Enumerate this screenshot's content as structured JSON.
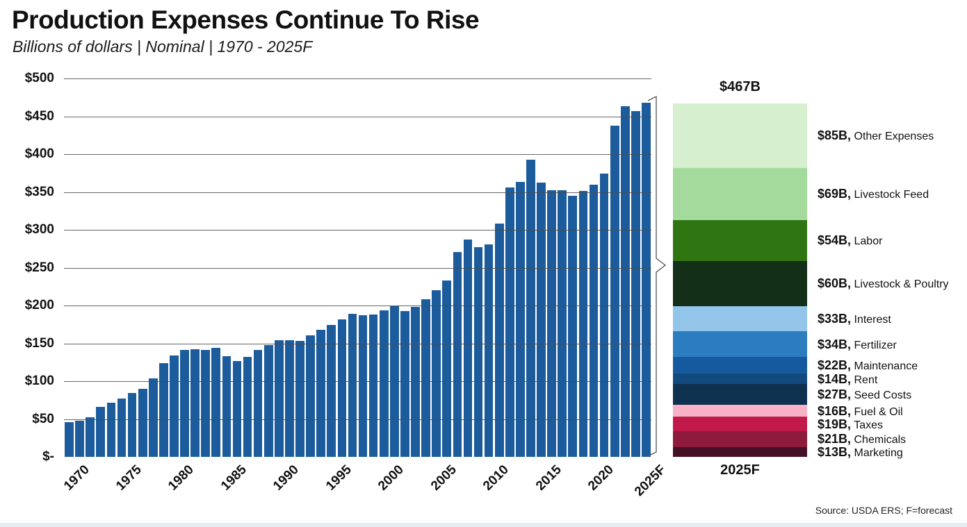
{
  "header": {
    "title": "Production Expenses Continue To Rise",
    "subtitle": "Billions of dollars | Nominal | 1970 - 2025F"
  },
  "footer": {
    "source": "Source: USDA ERS; F=forecast"
  },
  "chart_data": [
    {
      "type": "bar",
      "title": "Production Expenses Continue To Rise",
      "subtitle": "Billions of dollars | Nominal | 1970 - 2025F",
      "ylabel": "Billions of dollars",
      "ylim": [
        0,
        500
      ],
      "ytick_interval": 50,
      "grid": true,
      "bar_color": "#1c5c9d",
      "yticks": [
        {
          "label": "$500",
          "value": 500
        },
        {
          "label": "$450",
          "value": 450
        },
        {
          "label": "$400",
          "value": 400
        },
        {
          "label": "$350",
          "value": 350
        },
        {
          "label": "$300",
          "value": 300
        },
        {
          "label": "$250",
          "value": 250
        },
        {
          "label": "$200",
          "value": 200
        },
        {
          "label": "$150",
          "value": 150
        },
        {
          "label": "$100",
          "value": 100
        },
        {
          "label": "$50",
          "value": 50
        },
        {
          "label": "$-",
          "value": 0
        }
      ],
      "xticks": [
        {
          "label": "1970",
          "index": 0
        },
        {
          "label": "1975",
          "index": 5
        },
        {
          "label": "1980",
          "index": 10
        },
        {
          "label": "1985",
          "index": 15
        },
        {
          "label": "1990",
          "index": 20
        },
        {
          "label": "1995",
          "index": 25
        },
        {
          "label": "2000",
          "index": 30
        },
        {
          "label": "2005",
          "index": 35
        },
        {
          "label": "2010",
          "index": 40
        },
        {
          "label": "2015",
          "index": 45
        },
        {
          "label": "2020",
          "index": 50
        },
        {
          "label": "2025F",
          "index": 55
        }
      ],
      "x": [
        "1970",
        "1971",
        "1972",
        "1973",
        "1974",
        "1975",
        "1976",
        "1977",
        "1978",
        "1979",
        "1980",
        "1981",
        "1982",
        "1983",
        "1984",
        "1985",
        "1986",
        "1987",
        "1988",
        "1989",
        "1990",
        "1991",
        "1992",
        "1993",
        "1994",
        "1995",
        "1996",
        "1997",
        "1998",
        "1999",
        "2000",
        "2001",
        "2002",
        "2003",
        "2004",
        "2005",
        "2006",
        "2007",
        "2008",
        "2009",
        "2010",
        "2011",
        "2012",
        "2013",
        "2014",
        "2015",
        "2016",
        "2017",
        "2018",
        "2019",
        "2020",
        "2021",
        "2022",
        "2023",
        "2024",
        "2025F"
      ],
      "values": [
        46,
        48,
        52,
        66,
        72,
        77,
        84,
        90,
        104,
        124,
        134,
        141,
        142,
        141,
        144,
        133,
        127,
        132,
        141,
        148,
        154,
        154,
        153,
        161,
        168,
        174,
        182,
        189,
        187,
        188,
        194,
        199,
        193,
        198,
        208,
        220,
        233,
        271,
        287,
        277,
        281,
        308,
        356,
        363,
        393,
        362,
        352,
        352,
        345,
        351,
        360,
        374,
        438,
        463,
        457,
        468
      ]
    },
    {
      "type": "bar",
      "stacked": true,
      "total_label": "$467B",
      "total_value": 467,
      "xlabel": "2025F",
      "segments": [
        {
          "label": "Other Expenses",
          "value_label": "$85B",
          "value": 85,
          "color": "#d5efcf"
        },
        {
          "label": "Livestock Feed",
          "value_label": "$69B",
          "value": 69,
          "color": "#a4db9c"
        },
        {
          "label": "Labor",
          "value_label": "$54B",
          "value": 54,
          "color": "#2f7512"
        },
        {
          "label": "Livestock & Poultry",
          "value_label": "$60B",
          "value": 60,
          "color": "#132f18"
        },
        {
          "label": "Interest",
          "value_label": "$33B",
          "value": 33,
          "color": "#92c5e9"
        },
        {
          "label": "Fertilizer",
          "value_label": "$34B",
          "value": 34,
          "color": "#2c7dc0"
        },
        {
          "label": "Maintenance",
          "value_label": "$22B",
          "value": 22,
          "color": "#155a9e"
        },
        {
          "label": "Rent",
          "value_label": "$14B",
          "value": 14,
          "color": "#134a7e"
        },
        {
          "label": "Seed Costs",
          "value_label": "$27B",
          "value": 27,
          "color": "#0e3150"
        },
        {
          "label": "Fuel & Oil",
          "value_label": "$16B",
          "value": 16,
          "color": "#f9b1c7"
        },
        {
          "label": "Taxes",
          "value_label": "$19B",
          "value": 19,
          "color": "#c0194a"
        },
        {
          "label": "Chemicals",
          "value_label": "$21B",
          "value": 21,
          "color": "#8e1a3c"
        },
        {
          "label": "Marketing",
          "value_label": "$13B",
          "value": 13,
          "color": "#451026"
        }
      ]
    }
  ]
}
